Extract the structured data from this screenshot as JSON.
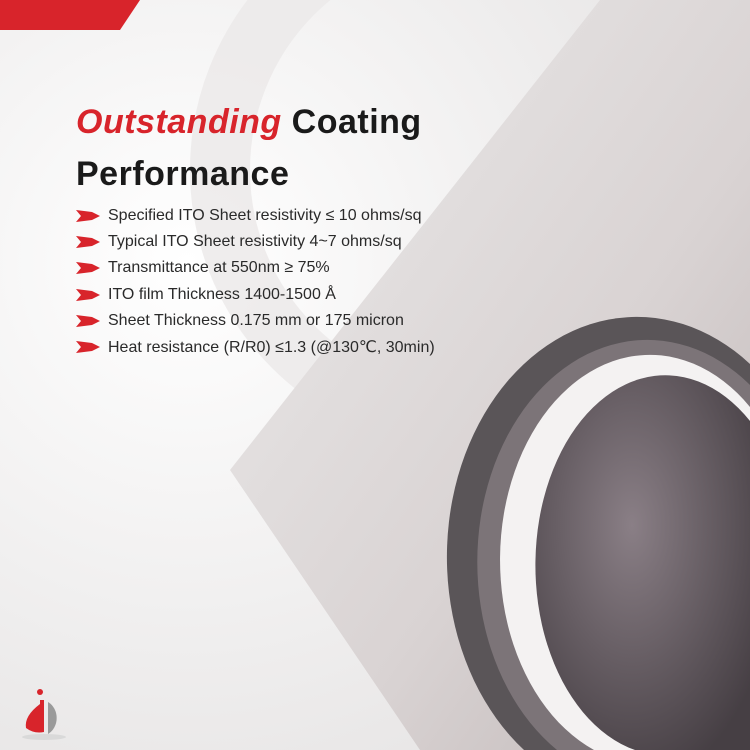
{
  "heading": {
    "accent": "Outstanding",
    "rest": " Coating",
    "line2": "Performance"
  },
  "bullets": [
    "Specified ITO Sheet resistivity ≤ 10 ohms/sq",
    "Typical ITO Sheet resistivity 4~7 ohms/sq",
    "Transmittance at 550nm ≥ 75%",
    "ITO film Thickness 1400-1500 Å",
    "Sheet Thickness 0.175 mm or 175 micron",
    "Heat resistance (R/R0) ≤1.3 (@130℃, 30min)"
  ],
  "colors": {
    "accent": "#d8242b",
    "text": "#1a1a1a"
  },
  "icons": {
    "bullet": "red-chevron-arrow-icon",
    "logo": "company-logo-icon"
  }
}
